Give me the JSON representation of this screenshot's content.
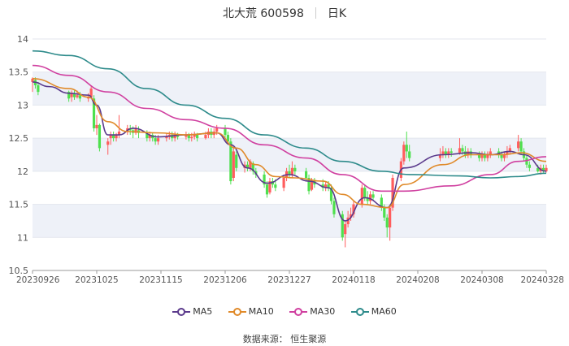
{
  "header": {
    "stock": "北大荒 600598",
    "period": "日K"
  },
  "source": "数据来源： 恒生聚源",
  "colors": {
    "up": "#ff5d5d",
    "down": "#4ee04e",
    "ma5": "#5b3a8c",
    "ma10": "#e08a2a",
    "ma30": "#d040a0",
    "ma60": "#2e8b8b",
    "band": "#eef1f8"
  },
  "chart_data": {
    "type": "line",
    "title": "北大荒 600598 日K",
    "ylim": [
      10.5,
      14
    ],
    "yticks": [
      "14",
      "13.5",
      "13",
      "12.5",
      "12",
      "11.5",
      "11",
      "10.5"
    ],
    "xticks": [
      "20230926",
      "20231025",
      "20231115",
      "20231206",
      "20231227",
      "20240118",
      "20240208",
      "20240308",
      "20240328"
    ],
    "x_start": "2023-09-26",
    "x_end": "2024-03-28",
    "candles": [
      [
        "2023-09-26",
        13.35,
        13.4,
        13.2,
        13.42
      ],
      [
        "2023-09-27",
        13.38,
        13.3,
        13.25,
        13.42
      ],
      [
        "2023-09-28",
        13.3,
        13.2,
        13.15,
        13.35
      ],
      [
        "2023-10-09",
        13.2,
        13.1,
        13.05,
        13.22
      ],
      [
        "2023-10-10",
        13.12,
        13.18,
        13.05,
        13.22
      ],
      [
        "2023-10-11",
        13.18,
        13.12,
        13.08,
        13.22
      ],
      [
        "2023-10-12",
        13.12,
        13.15,
        13.1,
        13.22
      ],
      [
        "2023-10-13",
        13.15,
        13.1,
        13.05,
        13.2
      ],
      [
        "2023-10-16",
        13.1,
        13.12,
        13.05,
        13.18
      ],
      [
        "2023-10-17",
        13.12,
        13.25,
        13.1,
        13.3
      ],
      [
        "2023-10-18",
        13.1,
        12.65,
        12.6,
        13.15
      ],
      [
        "2023-10-19",
        12.65,
        12.7,
        12.55,
        12.85
      ],
      [
        "2023-10-20",
        12.7,
        12.35,
        12.3,
        12.72
      ],
      [
        "2023-10-23",
        12.4,
        12.45,
        12.25,
        12.5
      ],
      [
        "2023-10-24",
        12.5,
        12.55,
        12.4,
        12.6
      ],
      [
        "2023-10-25",
        12.55,
        12.5,
        12.45,
        12.6
      ],
      [
        "2023-10-26",
        12.5,
        12.55,
        12.45,
        12.58
      ],
      [
        "2023-10-27",
        12.55,
        12.6,
        12.5,
        12.85
      ],
      [
        "2023-10-30",
        12.6,
        12.65,
        12.55,
        12.7
      ],
      [
        "2023-10-31",
        12.65,
        12.62,
        12.55,
        12.7
      ],
      [
        "2023-11-01",
        12.62,
        12.58,
        12.5,
        12.68
      ],
      [
        "2023-11-02",
        12.58,
        12.65,
        12.55,
        12.7
      ],
      [
        "2023-11-03",
        12.62,
        12.58,
        12.5,
        12.68
      ],
      [
        "2023-11-06",
        12.58,
        12.5,
        12.45,
        12.62
      ],
      [
        "2023-11-07",
        12.5,
        12.55,
        12.45,
        12.6
      ],
      [
        "2023-11-08",
        12.55,
        12.5,
        12.45,
        12.58
      ],
      [
        "2023-11-09",
        12.5,
        12.45,
        12.4,
        12.55
      ],
      [
        "2023-11-10",
        12.45,
        12.5,
        12.4,
        12.55
      ],
      [
        "2023-11-13",
        12.5,
        12.52,
        12.45,
        12.58
      ],
      [
        "2023-11-14",
        12.52,
        12.55,
        12.48,
        12.6
      ],
      [
        "2023-11-15",
        12.55,
        12.5,
        12.45,
        12.6
      ],
      [
        "2023-11-16",
        12.5,
        12.55,
        12.45,
        12.6
      ],
      [
        "2023-11-17",
        12.55,
        12.52,
        12.48,
        12.58
      ],
      [
        "2023-11-20",
        12.52,
        12.55,
        12.48,
        12.6
      ],
      [
        "2023-11-21",
        12.55,
        12.5,
        12.45,
        12.58
      ],
      [
        "2023-11-22",
        12.5,
        12.52,
        12.45,
        12.58
      ],
      [
        "2023-11-23",
        12.52,
        12.55,
        12.48,
        12.6
      ],
      [
        "2023-11-24",
        12.55,
        12.5,
        12.45,
        12.58
      ],
      [
        "2023-11-27",
        12.5,
        12.55,
        12.48,
        12.6
      ],
      [
        "2023-11-28",
        12.55,
        12.6,
        12.5,
        12.65
      ],
      [
        "2023-11-29",
        12.6,
        12.55,
        12.5,
        12.65
      ],
      [
        "2023-11-30",
        12.55,
        12.6,
        12.5,
        12.65
      ],
      [
        "2023-12-01",
        12.6,
        12.65,
        12.55,
        12.7
      ],
      [
        "2023-12-04",
        12.65,
        12.55,
        12.5,
        12.7
      ],
      [
        "2023-12-05",
        12.55,
        12.45,
        12.4,
        12.6
      ],
      [
        "2023-12-06",
        12.45,
        11.85,
        11.8,
        12.5
      ],
      [
        "2023-12-07",
        11.9,
        12.3,
        11.85,
        12.35
      ],
      [
        "2023-12-08",
        12.25,
        12.05,
        12.0,
        12.3
      ],
      [
        "2023-12-11",
        12.05,
        12.1,
        11.98,
        12.15
      ],
      [
        "2023-12-12",
        12.1,
        12.05,
        12.0,
        12.15
      ],
      [
        "2023-12-13",
        12.05,
        12.15,
        12.0,
        12.18
      ],
      [
        "2023-12-14",
        12.12,
        12.0,
        11.95,
        12.15
      ],
      [
        "2023-12-15",
        12.0,
        11.95,
        11.9,
        12.05
      ],
      [
        "2023-12-18",
        11.95,
        11.8,
        11.75,
        12.0
      ],
      [
        "2023-12-19",
        11.8,
        11.65,
        11.6,
        11.85
      ],
      [
        "2023-12-20",
        11.68,
        11.85,
        11.65,
        11.9
      ],
      [
        "2023-12-21",
        11.85,
        11.8,
        11.75,
        11.9
      ],
      [
        "2023-12-22",
        11.8,
        11.75,
        11.7,
        11.88
      ],
      [
        "2023-12-25",
        11.75,
        11.9,
        11.7,
        11.95
      ],
      [
        "2023-12-26",
        11.9,
        12.0,
        11.85,
        12.05
      ],
      [
        "2023-12-27",
        12.0,
        11.95,
        11.9,
        12.1
      ],
      [
        "2023-12-28",
        11.95,
        12.05,
        11.9,
        12.15
      ],
      [
        "2023-12-29",
        12.05,
        12.0,
        11.95,
        12.1
      ],
      [
        "2024-01-02",
        12.0,
        11.9,
        11.85,
        12.05
      ],
      [
        "2024-01-03",
        11.9,
        11.7,
        11.65,
        11.95
      ],
      [
        "2024-01-04",
        11.72,
        11.85,
        11.7,
        11.9
      ],
      [
        "2024-01-05",
        11.85,
        11.8,
        11.75,
        11.9
      ],
      [
        "2024-01-08",
        11.8,
        11.75,
        11.7,
        11.88
      ],
      [
        "2024-01-09",
        11.75,
        11.8,
        11.7,
        11.85
      ],
      [
        "2024-01-10",
        11.8,
        11.75,
        11.7,
        11.85
      ],
      [
        "2024-01-11",
        11.75,
        11.55,
        11.5,
        11.8
      ],
      [
        "2024-01-12",
        11.55,
        11.35,
        11.3,
        11.6
      ],
      [
        "2024-01-15",
        11.35,
        11.0,
        10.95,
        11.4
      ],
      [
        "2024-01-16",
        11.05,
        11.2,
        10.85,
        11.25
      ],
      [
        "2024-01-17",
        11.2,
        11.3,
        11.15,
        11.4
      ],
      [
        "2024-01-18",
        11.3,
        11.35,
        11.25,
        11.45
      ],
      [
        "2024-01-19",
        11.35,
        11.5,
        11.3,
        11.55
      ],
      [
        "2024-01-22",
        11.5,
        11.75,
        11.45,
        11.8
      ],
      [
        "2024-01-23",
        11.75,
        11.6,
        11.55,
        11.8
      ],
      [
        "2024-01-24",
        11.6,
        11.55,
        11.5,
        11.7
      ],
      [
        "2024-01-25",
        11.55,
        11.65,
        11.5,
        11.7
      ],
      [
        "2024-01-26",
        11.65,
        11.6,
        11.55,
        11.7
      ],
      [
        "2024-01-29",
        11.6,
        11.45,
        11.4,
        11.65
      ],
      [
        "2024-01-30",
        11.45,
        11.3,
        11.25,
        11.5
      ],
      [
        "2024-01-31",
        11.3,
        11.15,
        11.0,
        11.35
      ],
      [
        "2024-02-01",
        11.15,
        11.45,
        10.95,
        11.5
      ],
      [
        "2024-02-02",
        11.45,
        11.9,
        11.4,
        11.95
      ],
      [
        "2024-02-05",
        11.9,
        12.15,
        11.85,
        12.2
      ],
      [
        "2024-02-06",
        12.15,
        12.4,
        12.1,
        12.45
      ],
      [
        "2024-02-07",
        12.4,
        12.3,
        12.2,
        12.6
      ],
      [
        "2024-02-08",
        12.3,
        12.2,
        12.15,
        12.4
      ],
      [
        "2024-02-19",
        12.2,
        12.25,
        12.15,
        12.35
      ],
      [
        "2024-02-20",
        12.25,
        12.3,
        12.2,
        12.38
      ],
      [
        "2024-02-21",
        12.3,
        12.25,
        12.2,
        12.35
      ],
      [
        "2024-02-22",
        12.25,
        12.3,
        12.2,
        12.35
      ],
      [
        "2024-02-23",
        12.3,
        12.28,
        12.22,
        12.35
      ],
      [
        "2024-02-26",
        12.28,
        12.35,
        12.25,
        12.5
      ],
      [
        "2024-02-27",
        12.35,
        12.3,
        12.25,
        12.4
      ],
      [
        "2024-02-28",
        12.3,
        12.25,
        12.2,
        12.38
      ],
      [
        "2024-02-29",
        12.25,
        12.3,
        12.2,
        12.35
      ],
      [
        "2024-03-01",
        12.3,
        12.25,
        12.2,
        12.35
      ],
      [
        "2024-03-04",
        12.25,
        12.2,
        12.15,
        12.3
      ],
      [
        "2024-03-05",
        12.2,
        12.25,
        12.15,
        12.3
      ],
      [
        "2024-03-06",
        12.25,
        12.2,
        12.15,
        12.3
      ],
      [
        "2024-03-07",
        12.2,
        12.25,
        12.15,
        12.3
      ],
      [
        "2024-03-08",
        12.25,
        12.3,
        12.2,
        12.35
      ],
      [
        "2024-03-11",
        12.3,
        12.25,
        12.2,
        12.35
      ],
      [
        "2024-03-12",
        12.25,
        12.2,
        12.15,
        12.3
      ],
      [
        "2024-03-13",
        12.2,
        12.25,
        12.15,
        12.3
      ],
      [
        "2024-03-14",
        12.25,
        12.3,
        12.2,
        12.38
      ],
      [
        "2024-03-15",
        12.3,
        12.35,
        12.25,
        12.4
      ],
      [
        "2024-03-18",
        12.35,
        12.45,
        12.3,
        12.55
      ],
      [
        "2024-03-19",
        12.45,
        12.3,
        12.25,
        12.5
      ],
      [
        "2024-03-20",
        12.3,
        12.2,
        12.15,
        12.35
      ],
      [
        "2024-03-21",
        12.2,
        12.1,
        12.05,
        12.25
      ],
      [
        "2024-03-22",
        12.1,
        12.05,
        12.0,
        12.15
      ],
      [
        "2024-03-25",
        12.05,
        12.0,
        11.98,
        12.1
      ],
      [
        "2024-03-26",
        12.0,
        12.05,
        11.95,
        12.1
      ],
      [
        "2024-03-27",
        12.05,
        12.0,
        11.98,
        12.1
      ],
      [
        "2024-03-28",
        12.0,
        12.05,
        11.98,
        12.1
      ]
    ],
    "series": [
      {
        "name": "MA5",
        "points": [
          [
            "2023-09-26",
            13.35
          ],
          [
            "2023-10-02",
            13.28
          ],
          [
            "2023-10-09",
            13.18
          ],
          [
            "2023-10-16",
            13.15
          ],
          [
            "2023-10-19",
            13.0
          ],
          [
            "2023-10-23",
            12.55
          ],
          [
            "2023-10-27",
            12.55
          ],
          [
            "2023-11-01",
            12.65
          ],
          [
            "2023-11-10",
            12.52
          ],
          [
            "2023-11-20",
            12.55
          ],
          [
            "2023-12-01",
            12.58
          ],
          [
            "2023-12-06",
            12.4
          ],
          [
            "2023-12-12",
            12.05
          ],
          [
            "2023-12-19",
            11.82
          ],
          [
            "2023-12-27",
            11.95
          ],
          [
            "2024-01-03",
            11.85
          ],
          [
            "2024-01-10",
            11.75
          ],
          [
            "2024-01-16",
            11.25
          ],
          [
            "2024-01-23",
            11.6
          ],
          [
            "2024-01-31",
            11.45
          ],
          [
            "2024-02-06",
            12.05
          ],
          [
            "2024-02-20",
            12.25
          ],
          [
            "2024-03-01",
            12.28
          ],
          [
            "2024-03-08",
            12.25
          ],
          [
            "2024-03-15",
            12.3
          ],
          [
            "2024-03-20",
            12.25
          ],
          [
            "2024-03-28",
            12.0
          ]
        ]
      },
      {
        "name": "MA10",
        "points": [
          [
            "2023-09-26",
            13.4
          ],
          [
            "2023-10-09",
            13.25
          ],
          [
            "2023-10-16",
            13.12
          ],
          [
            "2023-10-23",
            12.75
          ],
          [
            "2023-10-30",
            12.6
          ],
          [
            "2023-11-10",
            12.58
          ],
          [
            "2023-11-20",
            12.55
          ],
          [
            "2023-12-01",
            12.58
          ],
          [
            "2023-12-08",
            12.35
          ],
          [
            "2023-12-15",
            12.1
          ],
          [
            "2023-12-22",
            11.92
          ],
          [
            "2023-12-29",
            11.9
          ],
          [
            "2024-01-08",
            11.85
          ],
          [
            "2024-01-15",
            11.65
          ],
          [
            "2024-01-22",
            11.5
          ],
          [
            "2024-01-31",
            11.45
          ],
          [
            "2024-02-06",
            11.8
          ],
          [
            "2024-02-20",
            12.1
          ],
          [
            "2024-03-01",
            12.25
          ],
          [
            "2024-03-12",
            12.25
          ],
          [
            "2024-03-19",
            12.28
          ],
          [
            "2024-03-28",
            12.15
          ]
        ]
      },
      {
        "name": "MA30",
        "points": [
          [
            "2023-09-26",
            13.6
          ],
          [
            "2023-10-09",
            13.45
          ],
          [
            "2023-10-23",
            13.2
          ],
          [
            "2023-11-06",
            12.95
          ],
          [
            "2023-11-20",
            12.78
          ],
          [
            "2023-12-04",
            12.65
          ],
          [
            "2023-12-18",
            12.4
          ],
          [
            "2024-01-02",
            12.2
          ],
          [
            "2024-01-15",
            11.95
          ],
          [
            "2024-01-29",
            11.7
          ],
          [
            "2024-02-06",
            11.7
          ],
          [
            "2024-02-23",
            11.78
          ],
          [
            "2024-03-08",
            11.95
          ],
          [
            "2024-03-18",
            12.15
          ],
          [
            "2024-03-28",
            12.22
          ]
        ]
      },
      {
        "name": "MA60",
        "points": [
          [
            "2023-09-26",
            13.82
          ],
          [
            "2023-10-09",
            13.75
          ],
          [
            "2023-10-23",
            13.55
          ],
          [
            "2023-11-06",
            13.25
          ],
          [
            "2023-11-20",
            13.0
          ],
          [
            "2023-12-04",
            12.8
          ],
          [
            "2023-12-18",
            12.55
          ],
          [
            "2024-01-02",
            12.35
          ],
          [
            "2024-01-15",
            12.15
          ],
          [
            "2024-01-29",
            12.0
          ],
          [
            "2024-02-08",
            11.95
          ],
          [
            "2024-02-26",
            11.93
          ],
          [
            "2024-03-08",
            11.9
          ],
          [
            "2024-03-18",
            11.92
          ],
          [
            "2024-03-28",
            11.97
          ]
        ]
      }
    ],
    "legend": [
      "MA5",
      "MA10",
      "MA30",
      "MA60"
    ],
    "legend_position": "bottom",
    "grid": true
  }
}
